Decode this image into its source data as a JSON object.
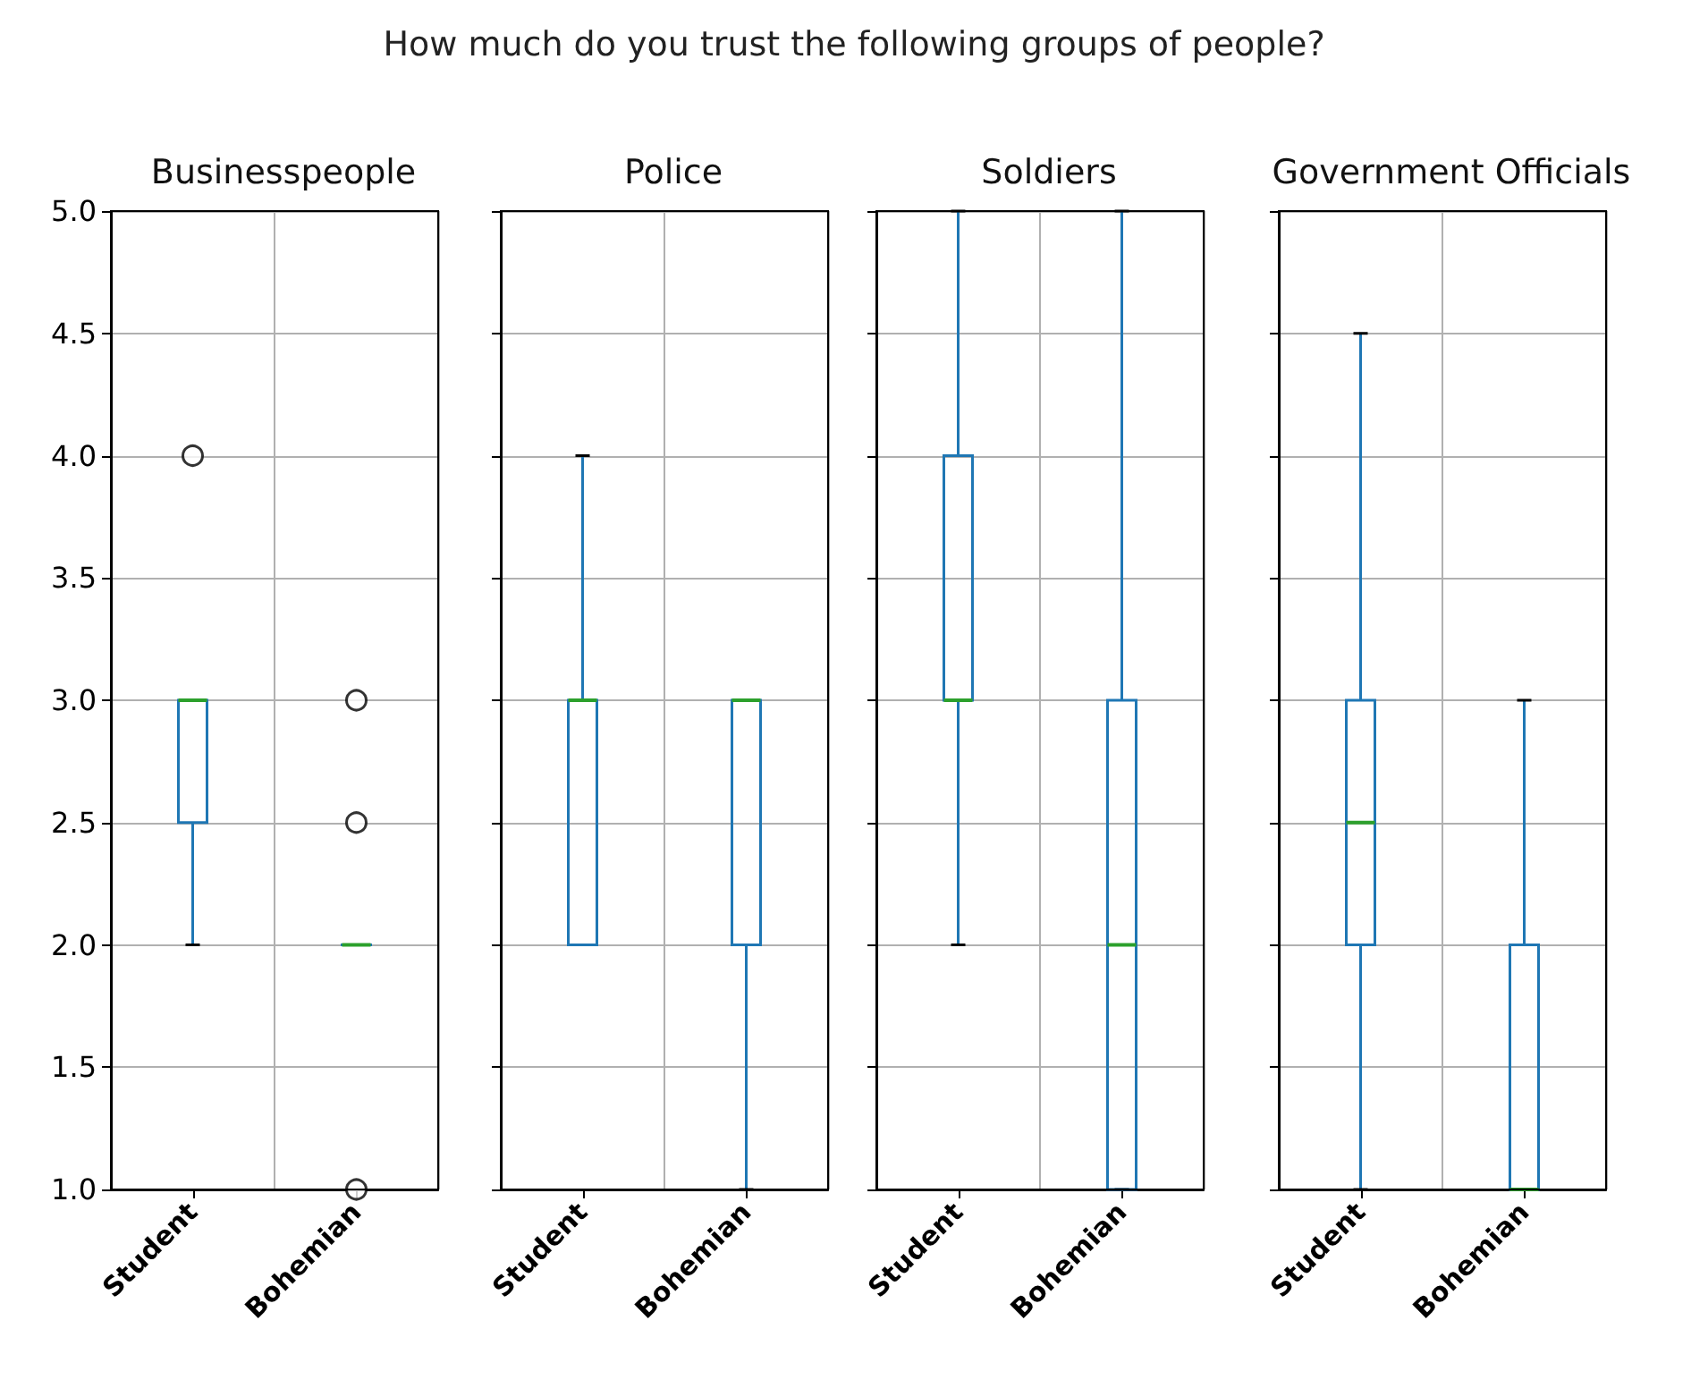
{
  "chart_data": [
    {
      "type": "box",
      "title": "Businesspeople",
      "annotations": [
        "How much do you trust the following groups of people?"
      ],
      "categories": [
        "Student",
        "Bohemian"
      ],
      "ylim": [
        1,
        5
      ],
      "yticks": [
        {
          "value": 1,
          "label": "1.0"
        },
        {
          "value": 1.5,
          "label": "1.5"
        },
        {
          "value": 2,
          "label": "2.0"
        },
        {
          "value": 2.5,
          "label": "2.5"
        },
        {
          "value": 3,
          "label": "3.0"
        },
        {
          "value": 3.5,
          "label": "3.5"
        },
        {
          "value": 4,
          "label": "4.0"
        },
        {
          "value": 4.5,
          "label": "4.5"
        },
        {
          "value": 5,
          "label": "5.0"
        }
      ],
      "grid": true,
      "series": [
        {
          "color": "#1f77b4",
          "boxes": [
            {
              "low": 2,
              "q1": 2.5,
              "median": 3,
              "q3": 3,
              "high": 3,
              "outliers": [
                4
              ]
            },
            {
              "low": 2,
              "q1": 2,
              "median": 2,
              "q3": 2,
              "high": 2,
              "outliers": [
                3,
                2.5,
                1
              ]
            }
          ]
        }
      ]
    },
    {
      "type": "box",
      "title": "Police",
      "categories": [
        "Student",
        "Bohemian"
      ],
      "ylim": [
        1,
        5
      ],
      "yticks": [
        {
          "value": 1,
          "label": null
        },
        {
          "value": 1.5,
          "label": null
        },
        {
          "value": 2,
          "label": null
        },
        {
          "value": 2.5,
          "label": null
        },
        {
          "value": 3,
          "label": null
        },
        {
          "value": 3.5,
          "label": null
        },
        {
          "value": 4,
          "label": null
        },
        {
          "value": 4.5,
          "label": null
        },
        {
          "value": 5,
          "label": null
        }
      ],
      "grid": true,
      "tick_labels": "x",
      "series": [
        {
          "color": "#1f77b4",
          "boxes": [
            {
              "low": 2,
              "q1": 2,
              "median": 3,
              "q3": 3,
              "high": 4
            },
            {
              "low": 1,
              "q1": 2,
              "median": 3,
              "q3": 3,
              "high": 3
            }
          ]
        }
      ]
    },
    {
      "type": "box",
      "title": "Soldiers",
      "categories": [
        "Student",
        "Bohemian"
      ],
      "ylim": [
        1,
        5
      ],
      "yticks": [
        {
          "value": 1,
          "label": null
        },
        {
          "value": 1.5,
          "label": null
        },
        {
          "value": 2,
          "label": null
        },
        {
          "value": 2.5,
          "label": null
        },
        {
          "value": 3,
          "label": null
        },
        {
          "value": 3.5,
          "label": null
        },
        {
          "value": 4,
          "label": null
        },
        {
          "value": 4.5,
          "label": null
        },
        {
          "value": 5,
          "label": null
        }
      ],
      "grid": true,
      "tick_labels": "x",
      "series": [
        {
          "color": "#1f77b4",
          "boxes": [
            {
              "low": 2,
              "q1": 3,
              "median": 3,
              "q3": 4,
              "high": 5
            },
            {
              "low": 1,
              "q1": 1,
              "median": 2,
              "q3": 3,
              "high": 5
            }
          ]
        }
      ]
    },
    {
      "type": "box",
      "title": "Government Officials",
      "categories": [
        "Student",
        "Bohemian"
      ],
      "ylim": [
        1,
        5
      ],
      "yticks": [
        {
          "value": 1,
          "label": null
        },
        {
          "value": 1.5,
          "label": null
        },
        {
          "value": 2,
          "label": null
        },
        {
          "value": 2.5,
          "label": null
        },
        {
          "value": 3,
          "label": null
        },
        {
          "value": 3.5,
          "label": null
        },
        {
          "value": 4,
          "label": null
        },
        {
          "value": 4.5,
          "label": null
        },
        {
          "value": 5,
          "label": null
        }
      ],
      "grid": true,
      "tick_labels": "x",
      "series": [
        {
          "color": "#1f77b4",
          "boxes": [
            {
              "low": 1,
              "q1": 2,
              "median": 2.5,
              "q3": 3,
              "high": 4.5
            },
            {
              "low": 1,
              "q1": 1,
              "median": 1,
              "q3": 2,
              "high": 3
            }
          ]
        }
      ]
    }
  ]
}
